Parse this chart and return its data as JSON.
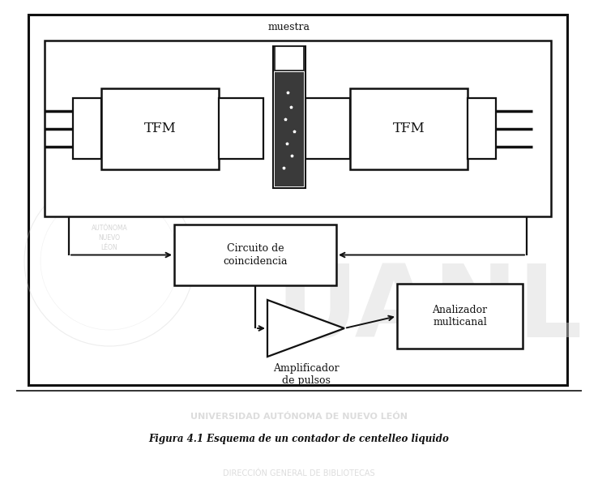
{
  "title": "Figura 4.1 Esquema de un contador de centelleo liquido",
  "background_color": "#ffffff",
  "fig_width": 7.38,
  "fig_height": 6.02,
  "dpi": 100,
  "sample_label": "muestra",
  "tfm_label": "TFM",
  "coincidence_label": "Circuito de\ncoincidencia",
  "amplifier_label": "Amplificador\nde pulsos",
  "analyzer_label": "Analizador\nmulticanal"
}
